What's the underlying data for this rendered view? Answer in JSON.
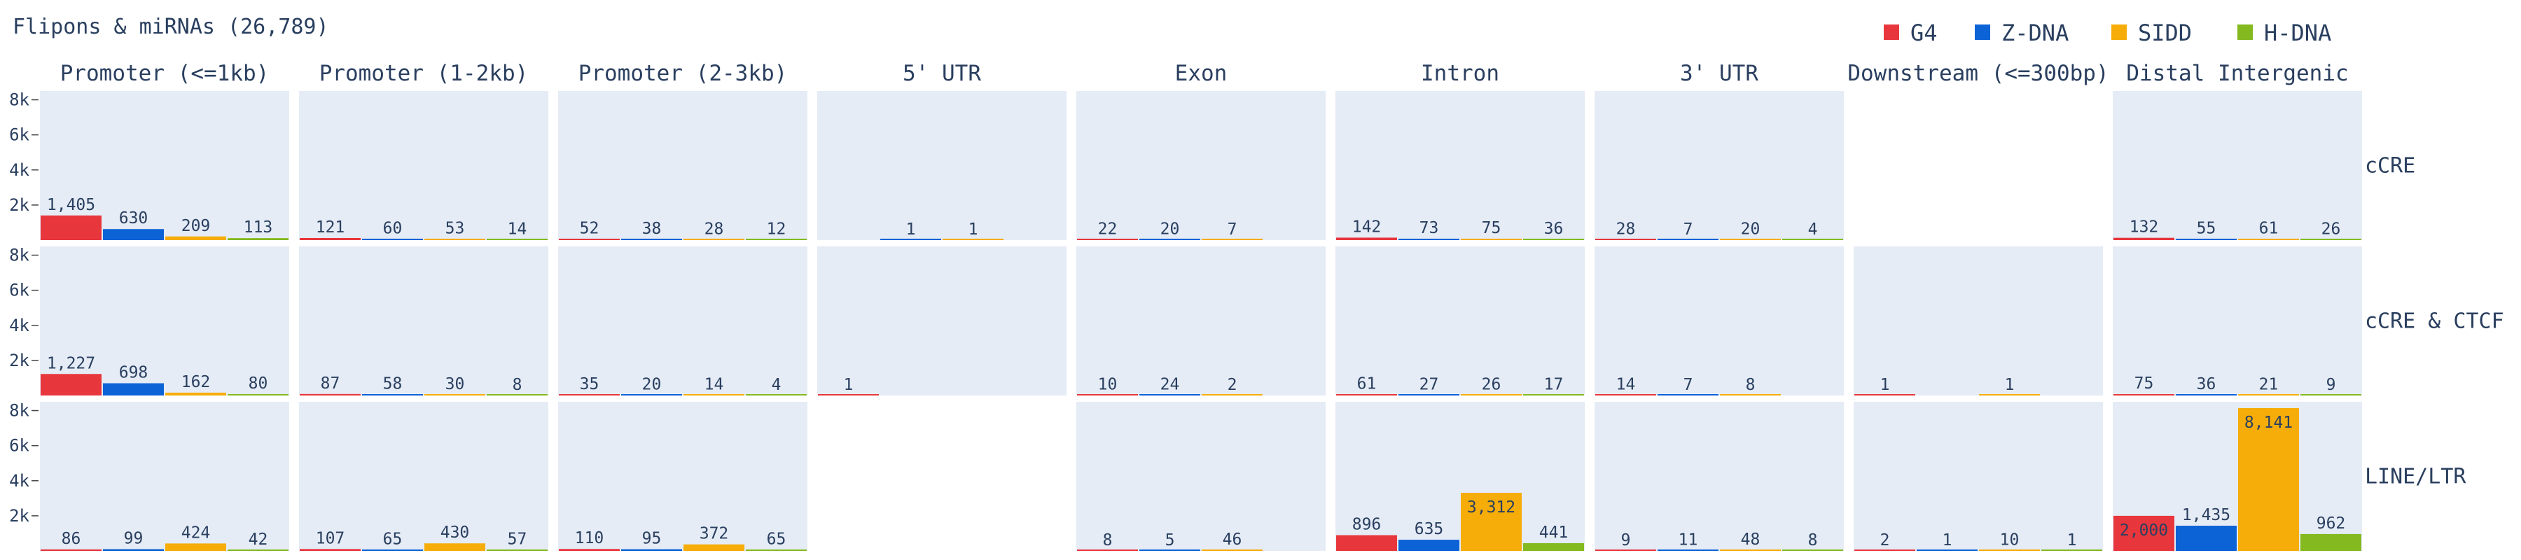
{
  "chart_data": {
    "type": "bar",
    "title": "Flipons & miRNAs (26,789)",
    "series": [
      {
        "name": "G4",
        "color": "#e8363d"
      },
      {
        "name": "Z-DNA",
        "color": "#0c63d6"
      },
      {
        "name": "SIDD",
        "color": "#f6ad09"
      },
      {
        "name": "H-DNA",
        "color": "#84b91f"
      }
    ],
    "columns": [
      "Promoter (<=1kb)",
      "Promoter (1-2kb)",
      "Promoter (2-3kb)",
      "5' UTR",
      "Exon",
      "Intron",
      "3' UTR",
      "Downstream (<=300bp)",
      "Distal Intergenic"
    ],
    "rows": [
      "cCRE",
      "cCRE & CTCF",
      "LINE/LTR"
    ],
    "ylim": [
      0,
      8500
    ],
    "yticks": [
      2000,
      4000,
      6000,
      8000
    ],
    "ytick_labels": [
      "2k",
      "4k",
      "6k",
      "8k"
    ],
    "grid": false,
    "legend_position": "top-right",
    "panels": [
      [
        {
          "values": [
            1405,
            630,
            209,
            113
          ],
          "labels": [
            "1,405",
            "630",
            "209",
            "113"
          ]
        },
        {
          "values": [
            121,
            60,
            53,
            14
          ],
          "labels": [
            "121",
            "60",
            "53",
            "14"
          ]
        },
        {
          "values": [
            52,
            38,
            28,
            12
          ],
          "labels": [
            "52",
            "38",
            "28",
            "12"
          ]
        },
        {
          "values": [
            null,
            1,
            1,
            null
          ],
          "labels": [
            "",
            "1",
            "1",
            ""
          ]
        },
        {
          "values": [
            22,
            20,
            7,
            null
          ],
          "labels": [
            "22",
            "20",
            "7",
            ""
          ]
        },
        {
          "values": [
            142,
            73,
            75,
            36
          ],
          "labels": [
            "142",
            "73",
            "75",
            "36"
          ]
        },
        {
          "values": [
            28,
            7,
            20,
            4
          ],
          "labels": [
            "28",
            "7",
            "20",
            "4"
          ]
        },
        null,
        {
          "values": [
            132,
            55,
            61,
            26
          ],
          "labels": [
            "132",
            "55",
            "61",
            "26"
          ]
        }
      ],
      [
        {
          "values": [
            1227,
            698,
            162,
            80
          ],
          "labels": [
            "1,227",
            "698",
            "162",
            "80"
          ]
        },
        {
          "values": [
            87,
            58,
            30,
            8
          ],
          "labels": [
            "87",
            "58",
            "30",
            "8"
          ]
        },
        {
          "values": [
            35,
            20,
            14,
            4
          ],
          "labels": [
            "35",
            "20",
            "14",
            "4"
          ]
        },
        {
          "values": [
            1,
            null,
            null,
            null
          ],
          "labels": [
            "1",
            "",
            "",
            ""
          ]
        },
        {
          "values": [
            10,
            24,
            2,
            null
          ],
          "labels": [
            "10",
            "24",
            "2",
            ""
          ]
        },
        {
          "values": [
            61,
            27,
            26,
            17
          ],
          "labels": [
            "61",
            "27",
            "26",
            "17"
          ]
        },
        {
          "values": [
            14,
            7,
            8,
            null
          ],
          "labels": [
            "14",
            "7",
            "8",
            ""
          ]
        },
        {
          "values": [
            1,
            null,
            1,
            null
          ],
          "labels": [
            "1",
            "",
            "1",
            ""
          ]
        },
        {
          "values": [
            75,
            36,
            21,
            9
          ],
          "labels": [
            "75",
            "36",
            "21",
            "9"
          ]
        }
      ],
      [
        {
          "values": [
            86,
            99,
            424,
            42
          ],
          "labels": [
            "86",
            "99",
            "424",
            "42"
          ]
        },
        {
          "values": [
            107,
            65,
            430,
            57
          ],
          "labels": [
            "107",
            "65",
            "430",
            "57"
          ]
        },
        {
          "values": [
            110,
            95,
            372,
            65
          ],
          "labels": [
            "110",
            "95",
            "372",
            "65"
          ]
        },
        null,
        {
          "values": [
            8,
            5,
            46,
            null
          ],
          "labels": [
            "8",
            "5",
            "46",
            ""
          ]
        },
        {
          "values": [
            896,
            635,
            3312,
            441
          ],
          "labels": [
            "896",
            "635",
            "3,312",
            "441"
          ]
        },
        {
          "values": [
            9,
            11,
            48,
            8
          ],
          "labels": [
            "9",
            "11",
            "48",
            "8"
          ]
        },
        {
          "values": [
            2,
            1,
            10,
            1
          ],
          "labels": [
            "2",
            "1",
            "10",
            "1"
          ]
        },
        {
          "values": [
            2000,
            1435,
            8141,
            962
          ],
          "labels": [
            "2,000",
            "1,435",
            "8,141",
            "962"
          ]
        }
      ]
    ]
  }
}
